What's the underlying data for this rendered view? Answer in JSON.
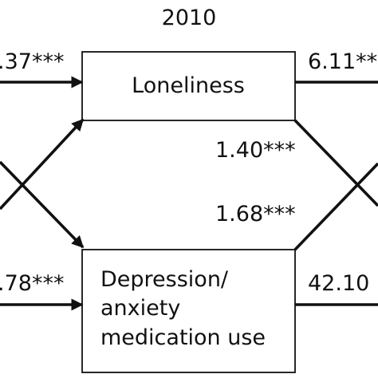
{
  "title": "2010",
  "nodes": {
    "loneliness": {
      "lines": [
        "Loneliness"
      ]
    },
    "medication": {
      "lines": [
        "Depression/",
        "anxiety",
        "medication use"
      ]
    }
  },
  "paths": {
    "in_loneliness": ".37***",
    "in_medication": ".78***",
    "out_loneliness": "6.11**",
    "out_medication": "42.10",
    "cross_loneliness_to_medication": "1.40***",
    "cross_medication_to_loneliness": "1.68***"
  },
  "colors": {
    "line": "#111111",
    "background": "#ffffff"
  }
}
